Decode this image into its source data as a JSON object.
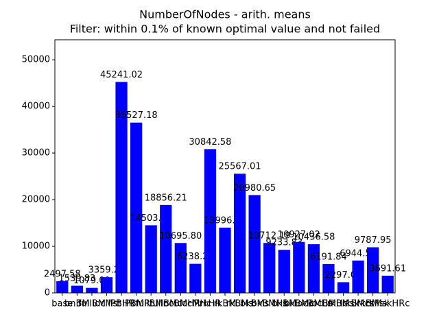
{
  "chart_data": {
    "type": "bar",
    "title": "NumberOfNodes - arith. means",
    "subtitle": "Filter: within 0.1% of known optimal value and not failed",
    "categories": [
      "base",
      "bnBM",
      "fullBM",
      "locMst",
      "IPBHR",
      "IPBMR",
      "fullBMr",
      "fullBMc",
      "locBMHR",
      "locMHc",
      "rkHR",
      "rkBM",
      "rkBMs",
      "bkBMs",
      "bkBMHs",
      "bkBM",
      "bkBMc",
      "locBMHs",
      "locBMHc",
      "rkBMsk",
      "rkBMcs",
      "rkBMsk",
      "rkMskHRc"
    ],
    "values": [
      2497.58,
      1539.83,
      1079.0,
      3359.22,
      45241.02,
      36527.18,
      14503.43,
      18856.21,
      10695.8,
      6238.27,
      30842.58,
      13996.85,
      25567.01,
      20980.65,
      10712.19,
      9233.83,
      10927.02,
      10436.58,
      6191.84,
      2297.02,
      6944.57,
      9787.95,
      3691.61
    ],
    "value_labels": [
      "2497.58",
      "1539.83",
      "1079.00",
      "3359.22",
      "45241.02",
      "36527.18",
      "14503.43",
      "18856.21",
      "10695.80",
      "6238.27",
      "30842.58",
      "13996.85",
      "25567.01",
      "20980.65",
      "10712.19",
      "9233.83",
      "10927.02",
      "10436.58",
      "6191.84",
      "2297.02",
      "6944.57",
      "9787.95",
      "3691.61"
    ],
    "color": "#0000ff",
    "ylim": [
      0,
      54289.2
    ],
    "yticks": [
      0,
      10000,
      20000,
      30000,
      40000,
      50000
    ]
  }
}
